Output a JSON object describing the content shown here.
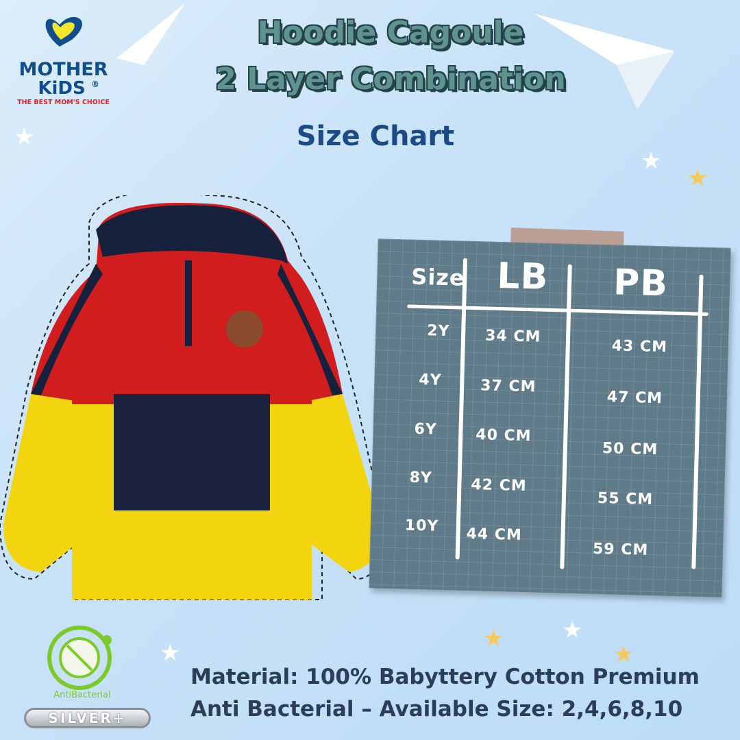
{
  "brand": {
    "name_line1": "MOTHER",
    "name_line2": "KiDS",
    "registered": "®",
    "tagline": "THE BEST MOM'S CHOICE"
  },
  "title": {
    "line1": "Hoodie Cagoule",
    "line2": "2 Layer Combination",
    "subtitle": "Size Chart"
  },
  "size_chart": {
    "headers": [
      "Size",
      "LB",
      "PB"
    ],
    "rows": [
      {
        "size": "2Y",
        "lb": "34 CM",
        "pb": "43 CM"
      },
      {
        "size": "4Y",
        "lb": "37 CM",
        "pb": "47 CM"
      },
      {
        "size": "6Y",
        "lb": "40 CM",
        "pb": "50 CM"
      },
      {
        "size": "8Y",
        "lb": "42 CM",
        "pb": "55 CM"
      },
      {
        "size": "10Y",
        "lb": "44 CM",
        "pb": "59 CM"
      }
    ]
  },
  "badges": {
    "antibacterial": "AntiBacterial",
    "silver": "SILVER+"
  },
  "footer": {
    "line1": "Material: 100% Babyttery Cotton Premium",
    "line2": "Anti Bacterial – Available Size: 2,4,6,8,10"
  },
  "colors": {
    "title_fill": "#5f938f",
    "subtitle": "#1c4a86",
    "board": "#5f7a88",
    "hoodie_red": "#d11d1d",
    "hoodie_yellow": "#f2d40f",
    "hoodie_navy": "#16213e"
  }
}
